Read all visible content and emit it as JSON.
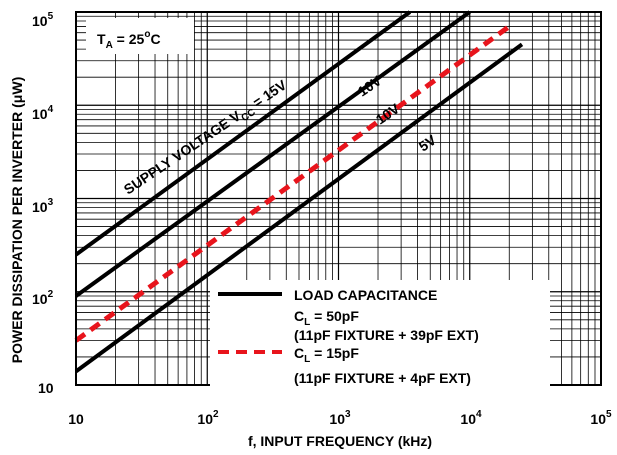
{
  "chart_data": {
    "type": "line",
    "xscale": "log",
    "yscale": "log",
    "xlim": [
      10,
      100000
    ],
    "ylim": [
      10,
      100000
    ],
    "grid": true,
    "xlabel": "f, INPUT FREQUENCY (kHz)",
    "ylabel": "POWER DISSIPATION PER INVERTER (μW)",
    "x_ticks": [
      {
        "base": "10",
        "exp": ""
      },
      {
        "base": "10",
        "exp": "2"
      },
      {
        "base": "10",
        "exp": "3"
      },
      {
        "base": "10",
        "exp": "4"
      },
      {
        "base": "10",
        "exp": "5"
      }
    ],
    "y_ticks": [
      {
        "base": "10",
        "exp": ""
      },
      {
        "base": "10",
        "exp": "2"
      },
      {
        "base": "10",
        "exp": "3"
      },
      {
        "base": "10",
        "exp": "4"
      },
      {
        "base": "10",
        "exp": "5"
      }
    ],
    "annotation": {
      "main": "T",
      "sub": "A",
      "eq": " = 25",
      "sup": "o",
      "unit": "C"
    },
    "series": [
      {
        "label_main": "SUPPLY VOLTAGE V",
        "label_sub": "CC",
        "label_end": " = 15V",
        "style": "solid",
        "color": "#000000",
        "x": [
          10,
          3500
        ],
        "y": [
          250,
          100000
        ]
      },
      {
        "label_main": "10V",
        "label_sub": "",
        "label_end": "",
        "style": "solid",
        "color": "#000000",
        "x": [
          10,
          10000
        ],
        "y": [
          90,
          100000
        ]
      },
      {
        "label_main": "10V",
        "label_sub": "",
        "label_end": "",
        "style": "dashed",
        "color": "#e8141c",
        "x": [
          10,
          20000
        ],
        "y": [
          30,
          70000
        ]
      },
      {
        "label_main": "5V",
        "label_sub": "",
        "label_end": "",
        "style": "solid",
        "color": "#000000",
        "x": [
          10,
          25000
        ],
        "y": [
          14,
          45000
        ]
      }
    ],
    "legend": {
      "placement": "bottom-right",
      "entries": [
        {
          "style": "solid",
          "color": "#000000",
          "line1": "LOAD CAPACITANCE",
          "line2_main": "C",
          "line2_sub": "L",
          "line2_end": " = 50pF",
          "line3": "(11pF FIXTURE + 39pF EXT)"
        },
        {
          "style": "dashed",
          "color": "#e8141c",
          "line1": "",
          "line2_main": "C",
          "line2_sub": "L",
          "line2_end": " = 15pF",
          "line3": "(11pF FIXTURE + 4pF EXT)"
        }
      ]
    }
  }
}
